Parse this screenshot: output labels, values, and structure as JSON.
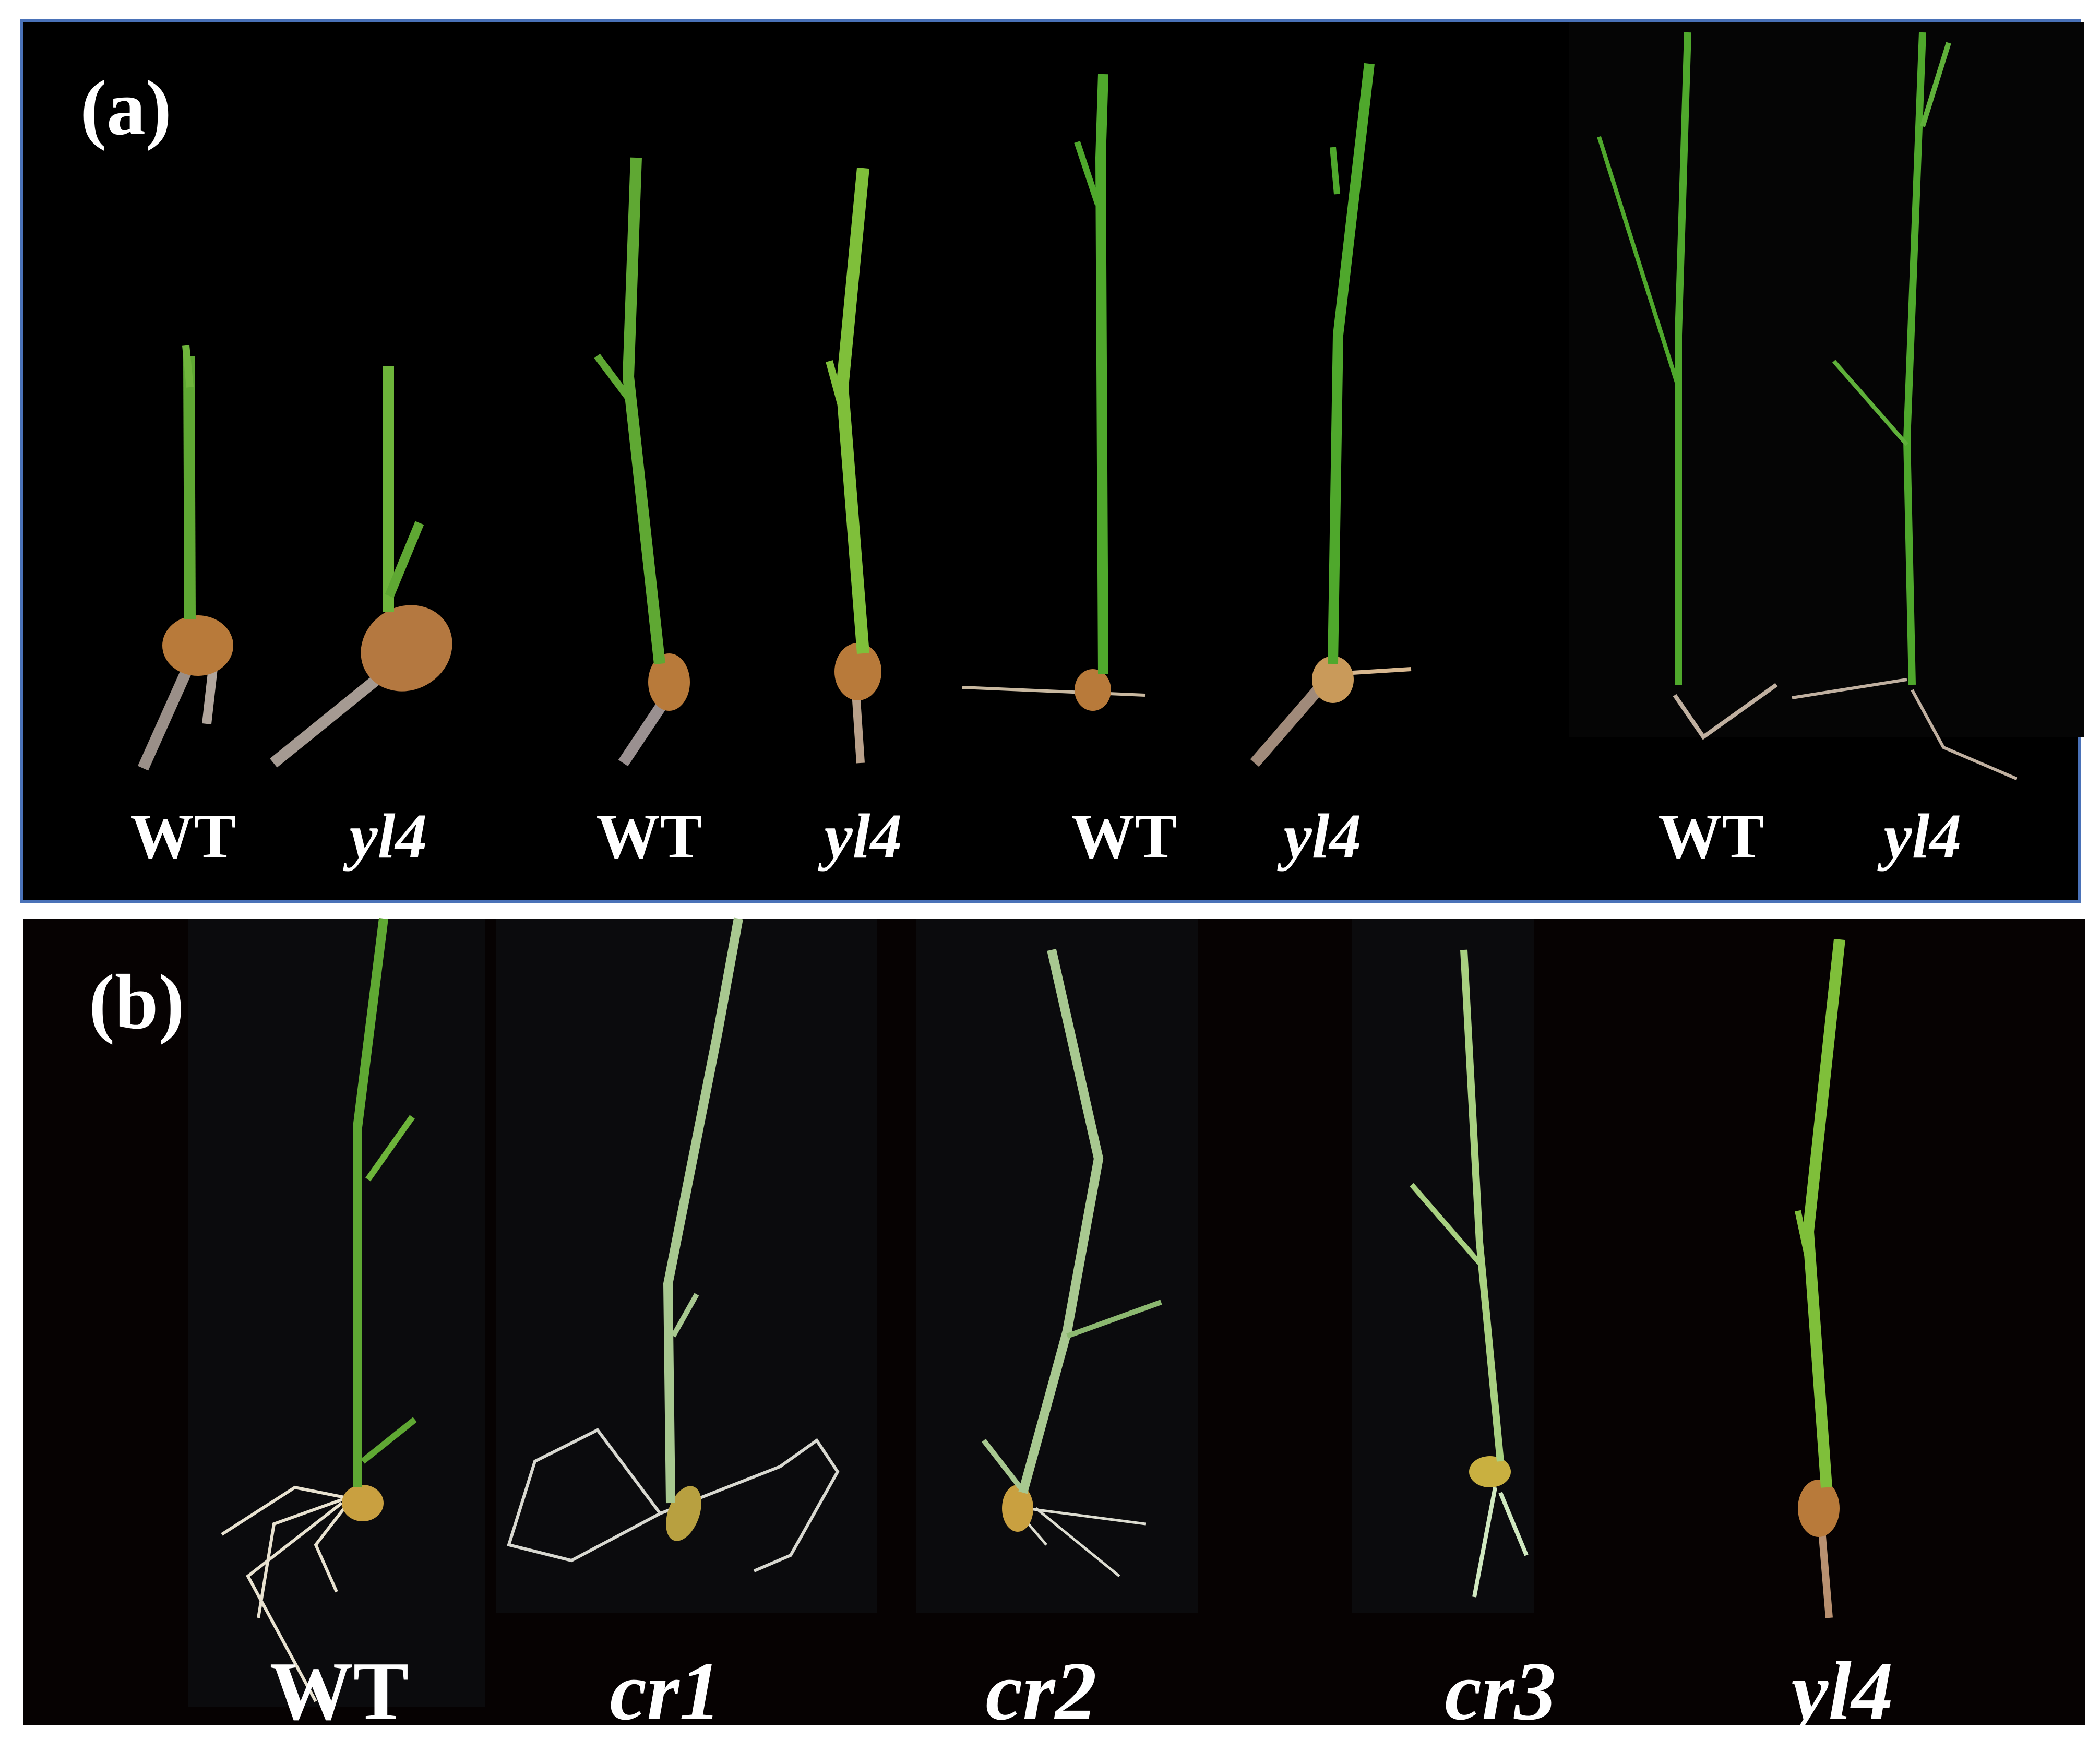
{
  "figure": {
    "panel_a": {
      "label": "(a)",
      "genotypes": [
        "WT",
        "yl4",
        "WT",
        "yl4",
        "WT",
        "yl4",
        "WT",
        "yl4"
      ]
    },
    "panel_b": {
      "label": "(b)",
      "genotypes": [
        "WT",
        "cr1",
        "cr2",
        "cr3",
        "yl4"
      ]
    }
  },
  "colors": {
    "border": "#4a72b8",
    "background": "#000000",
    "leaf_green": "#5fa833",
    "pale_leaf": "#a8c890",
    "seed": "#b87a3a",
    "root": "#e8e2d0"
  }
}
